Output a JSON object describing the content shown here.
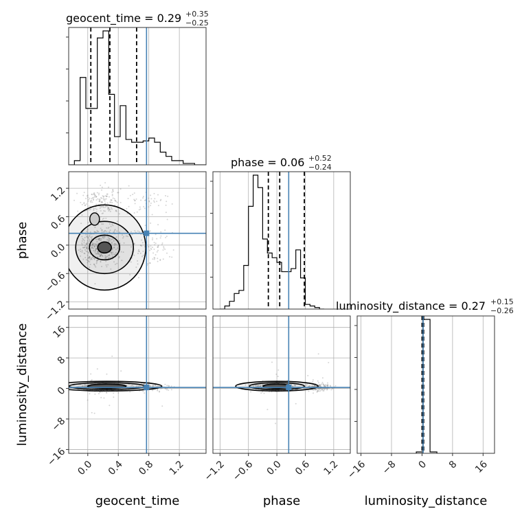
{
  "chart_data": {
    "type": "corner",
    "parameters": [
      "geocent_time",
      "phase",
      "luminosity_distance"
    ],
    "truths": {
      "geocent_time": 0.77,
      "phase": 0.25,
      "luminosity_distance": 0.27
    },
    "axis_ranges": {
      "geocent_time": [
        -0.25,
        1.55
      ],
      "phase": [
        -1.35,
        1.55
      ],
      "luminosity_distance": [
        -17,
        19
      ]
    },
    "tick_labels": {
      "geocent_time": [
        "0.0",
        "0.4",
        "0.8",
        "1.2"
      ],
      "phase": [
        "−1.2",
        "−0.6",
        "0.0",
        "0.6",
        "1.2"
      ],
      "luminosity_distance": [
        "−16",
        "−8",
        "0",
        "8",
        "16"
      ]
    },
    "titles": [
      {
        "param": "geocent_time",
        "label": "geocent_time = 0.29",
        "plus": "+0.35",
        "minus": "−0.25"
      },
      {
        "param": "phase",
        "label": "phase = 0.06",
        "plus": "+0.52",
        "minus": "−0.24"
      },
      {
        "param": "luminosity_distance",
        "label": "luminosity_distance = 0.27",
        "plus": "+0.15",
        "minus": "−0.26"
      }
    ],
    "quantiles": {
      "geocent_time": [
        0.04,
        0.29,
        0.64
      ],
      "phase": [
        -0.18,
        0.06,
        0.58
      ],
      "luminosity_distance": [
        0.01,
        0.27,
        0.42
      ]
    },
    "histograms": {
      "geocent_time": {
        "edges_start": -0.25,
        "bin_width": 0.075,
        "counts": [
          0,
          3,
          62,
          40,
          40,
          90,
          95,
          50,
          20,
          42,
          18,
          16,
          16,
          17,
          19,
          16,
          9,
          6,
          3,
          3,
          1,
          1,
          0,
          0
        ]
      },
      "phase": {
        "edges_start": -1.2,
        "bin_width": 0.1,
        "counts": [
          0,
          2,
          5,
          10,
          12,
          28,
          66,
          86,
          78,
          45,
          36,
          33,
          30,
          24,
          24,
          26,
          38,
          20,
          3,
          2,
          1,
          0
        ]
      },
      "luminosity_distance": {
        "edges_start": -1.5,
        "bin_width": 1.8,
        "counts": [
          1,
          99,
          1
        ]
      }
    },
    "grid": true,
    "xlabel_geocent": "geocent_time",
    "xlabel_phase": "phase",
    "xlabel_distance": "luminosity_distance",
    "ylabel_phase": "phase",
    "ylabel_distance": "luminosity_distance",
    "colors": {
      "truth": "#4682b4",
      "contour": "#000000",
      "hist": "#000000",
      "grid": "#b0b0b0"
    }
  }
}
